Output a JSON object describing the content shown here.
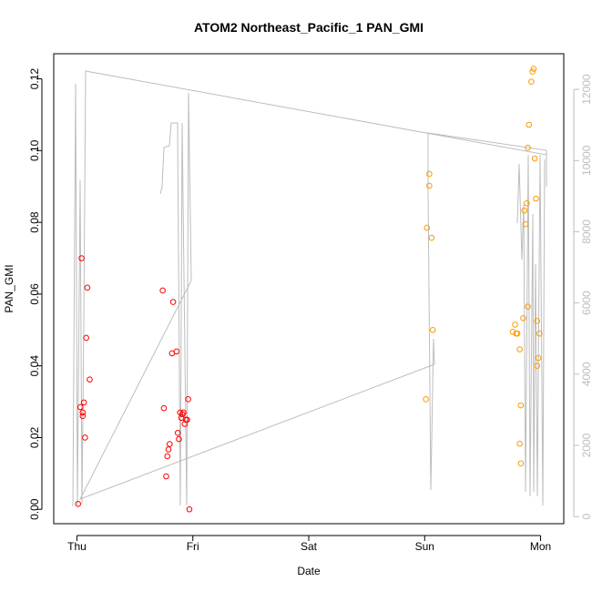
{
  "chart_data": {
    "type": "scatter",
    "title": "ATOM2 Northeast_Pacific_1 PAN_GMI",
    "xlabel": "Date",
    "ylabel": "PAN_GMI",
    "x_ticks": [
      "Thu",
      "Fri",
      "Sat",
      "Sun",
      "Mon"
    ],
    "xlim": [
      -0.2,
      4.2
    ],
    "ylim": [
      -0.004,
      0.127
    ],
    "y_ticks": [
      0.0,
      0.02,
      0.04,
      0.06,
      0.08,
      0.1,
      0.12
    ],
    "y2lim": [
      -200,
      13000
    ],
    "y2_ticks": [
      0,
      2000,
      4000,
      6000,
      8000,
      10000,
      12000
    ],
    "grid": false,
    "series": [
      {
        "color": "#ff0000",
        "x": [
          0.01,
          0.03,
          0.04,
          0.05,
          0.05,
          0.06,
          0.07,
          0.08,
          0.09,
          0.11,
          0.74,
          0.75,
          0.77,
          0.78,
          0.79,
          0.8,
          0.82,
          0.83,
          0.86,
          0.87,
          0.88,
          0.89,
          0.9,
          0.91,
          0.92,
          0.93,
          0.94,
          0.95,
          0.96,
          0.97
        ],
        "y": [
          0.0015,
          0.0285,
          0.07,
          0.027,
          0.026,
          0.0298,
          0.02,
          0.0478,
          0.0618,
          0.0362,
          0.061,
          0.0282,
          0.0092,
          0.0148,
          0.0167,
          0.0182,
          0.0435,
          0.0578,
          0.044,
          0.0213,
          0.0196,
          0.027,
          0.0255,
          0.0265,
          0.027,
          0.0238,
          0.025,
          0.025,
          0.0307,
          0.0
        ]
      },
      {
        "color": "#ff9900",
        "x": [
          3.01,
          3.02,
          3.04,
          3.04,
          3.06,
          3.07,
          3.76,
          3.78,
          3.79,
          3.8,
          3.82,
          3.82,
          3.83,
          3.83,
          3.85,
          3.86,
          3.87,
          3.88,
          3.89,
          3.89,
          3.9,
          3.92,
          3.93,
          3.94,
          3.95,
          3.96,
          3.97,
          3.97,
          3.98,
          3.99
        ],
        "y": [
          0.0307,
          0.0785,
          0.0935,
          0.0902,
          0.0757,
          0.05,
          0.0495,
          0.0515,
          0.049,
          0.049,
          0.0446,
          0.0183,
          0.0128,
          0.029,
          0.0533,
          0.0833,
          0.0795,
          0.0853,
          0.0565,
          0.1008,
          0.1072,
          0.1192,
          0.122,
          0.1228,
          0.0978,
          0.0866,
          0.04,
          0.0525,
          0.0422,
          0.049
        ]
      }
    ]
  }
}
